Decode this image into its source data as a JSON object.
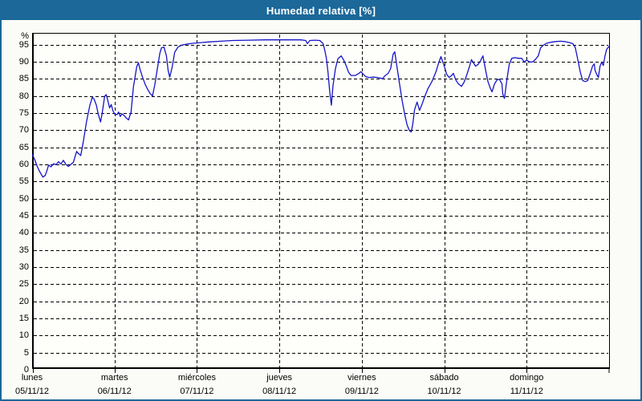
{
  "title": "Humedad relativa [%]",
  "colors": {
    "chrome": "#1b6899",
    "title_text": "#ffffff",
    "canvas_bg": "#fbfcf7",
    "plot_bg": "#fefefb",
    "line": "#1414c8",
    "grid": "#000000",
    "frame": "#000000",
    "label": "#000000"
  },
  "y_axis": {
    "unit_label": "%",
    "zero_label": "0",
    "ticks": [
      95,
      90,
      85,
      80,
      75,
      70,
      65,
      60,
      55,
      50,
      45,
      40,
      35,
      30,
      25,
      20,
      15,
      10,
      5
    ]
  },
  "x_axis": {
    "days": [
      {
        "name": "lunes",
        "date": "05/11/12"
      },
      {
        "name": "martes",
        "date": "06/11/12"
      },
      {
        "name": "miércoles",
        "date": "07/11/12"
      },
      {
        "name": "jueves",
        "date": "08/11/12"
      },
      {
        "name": "viernes",
        "date": "09/11/12"
      },
      {
        "name": "sábado",
        "date": "10/11/12"
      },
      {
        "name": "domingo",
        "date": "11/11/12"
      }
    ]
  },
  "chart_data": {
    "type": "line",
    "title": "Humedad relativa [%]",
    "ylabel": "%",
    "ylim": [
      0,
      98.4
    ],
    "x_unit": "days since lunes 05/11/12 00:00",
    "xlim": [
      0,
      7
    ],
    "grid": true,
    "legend": "none",
    "series": [
      {
        "name": "Humedad relativa",
        "color": "#1414c8",
        "points": [
          [
            0,
            63
          ],
          [
            0.03,
            61.5
          ],
          [
            0.06,
            59.5
          ],
          [
            0.09,
            58
          ],
          [
            0.13,
            56.3
          ],
          [
            0.16,
            56.8
          ],
          [
            0.18,
            58.2
          ],
          [
            0.2,
            59.8
          ],
          [
            0.23,
            59.3
          ],
          [
            0.26,
            60.2
          ],
          [
            0.29,
            59.9
          ],
          [
            0.32,
            60.8
          ],
          [
            0.35,
            60.1
          ],
          [
            0.38,
            61.2
          ],
          [
            0.41,
            60
          ],
          [
            0.44,
            59.4
          ],
          [
            0.47,
            60
          ],
          [
            0.5,
            60.6
          ],
          [
            0.54,
            63.8
          ],
          [
            0.56,
            63.2
          ],
          [
            0.59,
            62.6
          ],
          [
            0.62,
            66.5
          ],
          [
            0.66,
            72.5
          ],
          [
            0.7,
            77.2
          ],
          [
            0.73,
            79.6
          ],
          [
            0.75,
            79.2
          ],
          [
            0.78,
            77.3
          ],
          [
            0.8,
            74.9
          ],
          [
            0.83,
            72.4
          ],
          [
            0.85,
            74.9
          ],
          [
            0.88,
            79.9
          ],
          [
            0.9,
            80.4
          ],
          [
            0.92,
            78.5
          ],
          [
            0.94,
            76.5
          ],
          [
            0.96,
            77.5
          ],
          [
            0.98,
            75.7
          ],
          [
            1,
            74.8
          ],
          [
            1.03,
            74.5
          ],
          [
            1.05,
            75.3
          ],
          [
            1.07,
            74
          ],
          [
            1.09,
            74.8
          ],
          [
            1.12,
            74.2
          ],
          [
            1.14,
            73.6
          ],
          [
            1.17,
            73
          ],
          [
            1.2,
            75.3
          ],
          [
            1.23,
            82.7
          ],
          [
            1.27,
            88.6
          ],
          [
            1.29,
            89.7
          ],
          [
            1.31,
            87.7
          ],
          [
            1.34,
            85.5
          ],
          [
            1.37,
            83.5
          ],
          [
            1.4,
            82
          ],
          [
            1.43,
            80.8
          ],
          [
            1.46,
            80
          ],
          [
            1.49,
            83.4
          ],
          [
            1.52,
            88
          ],
          [
            1.55,
            92.5
          ],
          [
            1.57,
            94.1
          ],
          [
            1.6,
            94.3
          ],
          [
            1.63,
            91.7
          ],
          [
            1.65,
            87.5
          ],
          [
            1.67,
            85.5
          ],
          [
            1.7,
            88.5
          ],
          [
            1.73,
            92.8
          ],
          [
            1.77,
            94.3
          ],
          [
            1.82,
            94.9
          ],
          [
            1.89,
            95.2
          ],
          [
            1.95,
            95.4
          ],
          [
            2.01,
            95.5
          ],
          [
            2.14,
            95.8
          ],
          [
            2.29,
            96
          ],
          [
            2.43,
            96.2
          ],
          [
            2.63,
            96.3
          ],
          [
            2.82,
            96.4
          ],
          [
            3.01,
            96.4
          ],
          [
            3.16,
            96.4
          ],
          [
            3.26,
            96.4
          ],
          [
            3.32,
            96.2
          ],
          [
            3.34,
            95.3
          ],
          [
            3.37,
            96.2
          ],
          [
            3.43,
            96.3
          ],
          [
            3.49,
            96.2
          ],
          [
            3.53,
            95.3
          ],
          [
            3.55,
            93.5
          ],
          [
            3.57,
            91
          ],
          [
            3.59,
            87
          ],
          [
            3.61,
            81.5
          ],
          [
            3.63,
            77.3
          ],
          [
            3.65,
            82.9
          ],
          [
            3.68,
            88
          ],
          [
            3.71,
            90.9
          ],
          [
            3.75,
            91.7
          ],
          [
            3.78,
            90.5
          ],
          [
            3.81,
            88.9
          ],
          [
            3.84,
            86.9
          ],
          [
            3.87,
            86
          ],
          [
            3.92,
            86
          ],
          [
            3.96,
            86.5
          ],
          [
            3.99,
            87.1
          ],
          [
            4.02,
            86.3
          ],
          [
            4.05,
            85.6
          ],
          [
            4.09,
            85.4
          ],
          [
            4.14,
            85.5
          ],
          [
            4.19,
            85.4
          ],
          [
            4.23,
            85.2
          ],
          [
            4.25,
            85
          ],
          [
            4.28,
            85.9
          ],
          [
            4.32,
            86.6
          ],
          [
            4.35,
            88
          ],
          [
            4.38,
            92.2
          ],
          [
            4.4,
            92.9
          ],
          [
            4.43,
            88
          ],
          [
            4.46,
            83.2
          ],
          [
            4.49,
            78.5
          ],
          [
            4.52,
            74.7
          ],
          [
            4.55,
            71.5
          ],
          [
            4.58,
            69.8
          ],
          [
            4.6,
            69.5
          ],
          [
            4.62,
            72
          ],
          [
            4.64,
            76
          ],
          [
            4.67,
            78.2
          ],
          [
            4.7,
            75.8
          ],
          [
            4.73,
            77.5
          ],
          [
            4.76,
            79.6
          ],
          [
            4.8,
            82
          ],
          [
            4.85,
            84.2
          ],
          [
            4.9,
            87.1
          ],
          [
            4.93,
            89.5
          ],
          [
            4.96,
            91.5
          ],
          [
            4.97,
            90.8
          ],
          [
            5,
            88.7
          ],
          [
            5.03,
            86.3
          ],
          [
            5.06,
            85.4
          ],
          [
            5.09,
            86
          ],
          [
            5.11,
            86.6
          ],
          [
            5.14,
            84.7
          ],
          [
            5.17,
            83.6
          ],
          [
            5.21,
            82.8
          ],
          [
            5.24,
            84
          ],
          [
            5.27,
            85.9
          ],
          [
            5.31,
            88.9
          ],
          [
            5.33,
            90.6
          ],
          [
            5.36,
            89.5
          ],
          [
            5.38,
            88.7
          ],
          [
            5.41,
            89.2
          ],
          [
            5.44,
            90.3
          ],
          [
            5.47,
            91.7
          ],
          [
            5.5,
            87.8
          ],
          [
            5.53,
            84.2
          ],
          [
            5.56,
            82.2
          ],
          [
            5.58,
            81.2
          ],
          [
            5.61,
            83.5
          ],
          [
            5.64,
            84.7
          ],
          [
            5.67,
            84.9
          ],
          [
            5.7,
            83.5
          ],
          [
            5.71,
            80.5
          ],
          [
            5.73,
            79.3
          ],
          [
            5.76,
            84.7
          ],
          [
            5.79,
            89.4
          ],
          [
            5.82,
            91
          ],
          [
            5.86,
            91.2
          ],
          [
            5.9,
            91
          ],
          [
            5.94,
            91
          ],
          [
            5.97,
            89.9
          ],
          [
            6,
            90.5
          ],
          [
            6.03,
            90
          ],
          [
            6.06,
            89.9
          ],
          [
            6.08,
            90.1
          ],
          [
            6.11,
            90.8
          ],
          [
            6.14,
            91.7
          ],
          [
            6.17,
            94.1
          ],
          [
            6.2,
            94.8
          ],
          [
            6.24,
            95.4
          ],
          [
            6.29,
            95.7
          ],
          [
            6.35,
            95.9
          ],
          [
            6.41,
            96
          ],
          [
            6.46,
            95.9
          ],
          [
            6.52,
            95.6
          ],
          [
            6.56,
            95.3
          ],
          [
            6.59,
            94.1
          ],
          [
            6.62,
            90.6
          ],
          [
            6.65,
            87.1
          ],
          [
            6.68,
            84.5
          ],
          [
            6.71,
            84.2
          ],
          [
            6.74,
            84.5
          ],
          [
            6.77,
            86.5
          ],
          [
            6.8,
            88.8
          ],
          [
            6.82,
            89.4
          ],
          [
            6.83,
            87.5
          ],
          [
            6.85,
            86.3
          ],
          [
            6.87,
            85.4
          ],
          [
            6.89,
            88.7
          ],
          [
            6.91,
            89.9
          ],
          [
            6.93,
            88.9
          ],
          [
            6.95,
            91.7
          ],
          [
            6.97,
            93.6
          ],
          [
            7,
            94.5
          ]
        ]
      }
    ]
  }
}
